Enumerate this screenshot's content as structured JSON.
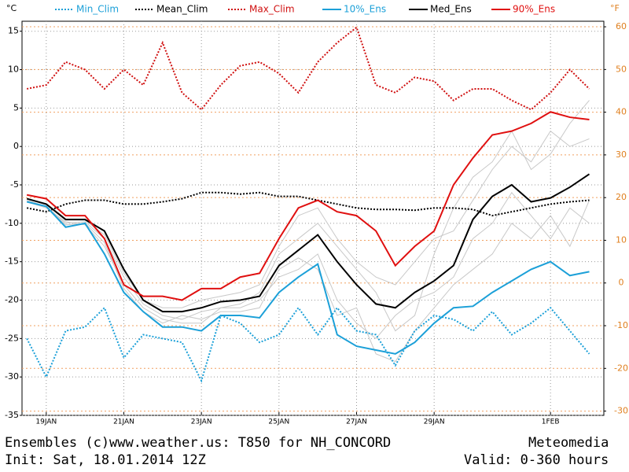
{
  "chart_data": {
    "type": "line",
    "title": "Ensembles (c)www.weather.us: T850 for NH_CONCORD",
    "brand": "Meteomedia",
    "init": "Init: Sat, 18.01.2014 12Z",
    "valid": "Valid: 0-360 hours",
    "y_label": "°C",
    "y2_label": "°F",
    "x": [
      0,
      12,
      24,
      36,
      48,
      60,
      72,
      84,
      96,
      108,
      120,
      132,
      144,
      156,
      168,
      180,
      192,
      204,
      216,
      228,
      240,
      252,
      264,
      276,
      288,
      300,
      312,
      324,
      336,
      348
    ],
    "xlim": [
      -3,
      357
    ],
    "xticks": [
      {
        "value": 12,
        "label": "19JAN"
      },
      {
        "value": 60,
        "label": "21JAN"
      },
      {
        "value": 108,
        "label": "23JAN"
      },
      {
        "value": 156,
        "label": "25JAN"
      },
      {
        "value": 204,
        "label": "27JAN"
      },
      {
        "value": 252,
        "label": "29JAN"
      },
      {
        "value": 324,
        "label": "1FEB"
      }
    ],
    "ylim": [
      -35,
      16.3
    ],
    "yticks": [
      15,
      10,
      5,
      0,
      -5,
      -10,
      -15,
      -20,
      -25,
      -30,
      -35
    ],
    "y2lim": [
      -31,
      61.3
    ],
    "y2ticks": [
      60,
      50,
      40,
      30,
      20,
      10,
      0,
      -10,
      -20,
      -30
    ],
    "grid": true,
    "members_color": "#c8c8c8",
    "members": [
      [
        -7,
        -7.8,
        -10,
        -9.8,
        -12,
        -17,
        -20.5,
        -22,
        -22.5,
        -21.5,
        -21,
        -20.5,
        -19,
        -14,
        -12,
        -10,
        -13,
        -16,
        -19,
        -24,
        -22,
        -14,
        -8,
        -4,
        -2,
        2,
        -3,
        -1,
        3,
        6
      ],
      [
        -7.2,
        -8,
        -9.8,
        -10.2,
        -13,
        -18,
        -21,
        -22.5,
        -23,
        -23,
        -21,
        -21,
        -20,
        -17,
        -16,
        -14,
        -20,
        -23,
        -25,
        -22,
        -20,
        -19,
        -17,
        -12,
        -10,
        -6,
        -9,
        -12,
        -8,
        -10
      ],
      [
        -6.8,
        -7.6,
        -9.6,
        -9.6,
        -11.5,
        -16.5,
        -20,
        -21,
        -21,
        -20,
        -19.5,
        -19,
        -18,
        -13,
        -9,
        -8,
        -12,
        -15,
        -17,
        -18,
        -15,
        -12,
        -11,
        -7,
        -3,
        0,
        -2,
        2,
        0,
        1
      ],
      [
        -7,
        -7.9,
        -10.2,
        -10,
        -12.5,
        -18.5,
        -21.5,
        -23,
        -22,
        -22.5,
        -21.5,
        -21.5,
        -21,
        -16,
        -14.5,
        -16,
        -22,
        -21,
        -27,
        -28,
        -24,
        -21,
        -18,
        -16,
        -14,
        -10,
        -12,
        -9,
        -13,
        -7
      ]
    ],
    "series": [
      {
        "name": "Min_Clim",
        "color": "#1ca0d8",
        "style": "dotted",
        "values": [
          -25,
          -30,
          -24,
          -23.5,
          -21,
          -27.5,
          -24.5,
          -25,
          -25.5,
          -30.5,
          -22,
          -23,
          -25.5,
          -24.5,
          -21,
          -24.5,
          -21,
          -24,
          -24.5,
          -28.5,
          -24,
          -22,
          -22.5,
          -24,
          -21.5,
          -24.5,
          -23,
          -21,
          -24,
          -27
        ]
      },
      {
        "name": "Mean_Clim",
        "color": "#000000",
        "style": "dotted",
        "values": [
          -8,
          -8.5,
          -7.5,
          -7,
          -7,
          -7.5,
          -7.5,
          -7.2,
          -6.8,
          -6,
          -6,
          -6.2,
          -6,
          -6.5,
          -6.5,
          -7,
          -7.5,
          -8,
          -8.2,
          -8.2,
          -8.3,
          -8,
          -8,
          -8.2,
          -9,
          -8.5,
          -8,
          -7.5,
          -7.2,
          -7
        ]
      },
      {
        "name": "Max_Clim",
        "color": "#d01010",
        "style": "dotted",
        "values": [
          7.5,
          8,
          11,
          10,
          7.5,
          10,
          8,
          13.5,
          7,
          4.8,
          8,
          10.5,
          11,
          9.5,
          7,
          11,
          13.5,
          15.5,
          8,
          7,
          9,
          8.5,
          6,
          7.5,
          7.5,
          6,
          4.8,
          7,
          10,
          7.5
        ]
      },
      {
        "name": "10%_Ens",
        "color": "#1ca0d8",
        "style": "solid",
        "values": [
          -7.2,
          -7.8,
          -10.5,
          -10,
          -14,
          -19,
          -21.5,
          -23.5,
          -23.5,
          -24,
          -22,
          -22,
          -22.3,
          -19,
          -17,
          -15.3,
          -24.5,
          -26,
          -26.5,
          -27,
          -25.5,
          -23,
          -21,
          -20.8,
          -19,
          -17.5,
          -16,
          -15,
          -16.8,
          -16.3
        ]
      },
      {
        "name": "Med_Ens",
        "color": "#000000",
        "style": "solid",
        "values": [
          -6.8,
          -7.5,
          -9.5,
          -9.5,
          -11,
          -16,
          -20,
          -21.5,
          -21.5,
          -21,
          -20.2,
          -20,
          -19.5,
          -15.5,
          -13.5,
          -11.5,
          -15,
          -18,
          -20.5,
          -21,
          -19,
          -17.5,
          -15.5,
          -9.5,
          -6.5,
          -5,
          -7.2,
          -6.7,
          -5.3,
          -3.6
        ]
      },
      {
        "name": "90%_Ens",
        "color": "#e01010",
        "style": "solid",
        "values": [
          -6.3,
          -6.8,
          -9,
          -9,
          -12,
          -18,
          -19.5,
          -19.5,
          -20,
          -18.5,
          -18.5,
          -17,
          -16.5,
          -12,
          -8,
          -7,
          -8.5,
          -9,
          -11,
          -15.5,
          -13,
          -11,
          -5,
          -1.5,
          1.5,
          2,
          3,
          4.5,
          3.8,
          3.5
        ]
      }
    ]
  }
}
